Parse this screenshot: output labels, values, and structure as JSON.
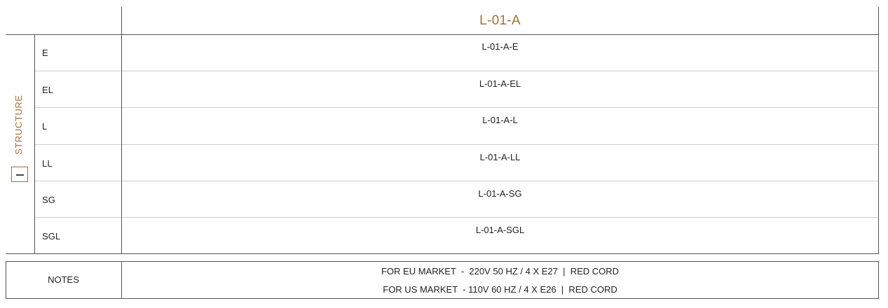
{
  "header": {
    "title": "L-01-A"
  },
  "structure": {
    "label": "STRUCTURE",
    "rows": [
      {
        "label": "E",
        "code": "L-01-A-E"
      },
      {
        "label": "EL",
        "code": "L-01-A-EL"
      },
      {
        "label": "L",
        "code": "L-01-A-L"
      },
      {
        "label": "LL",
        "code": "L-01-A-LL"
      },
      {
        "label": "SG",
        "code": "L-01-A-SG"
      },
      {
        "label": "SGL",
        "code": "L-01-A-SGL"
      }
    ]
  },
  "notes": {
    "label": "NOTES",
    "lines": [
      "FOR EU MARKET  -  220V 50 HZ / 4 X E27  |  RED CORD",
      "FOR US MARKET  - 110V 60 HZ / 4 X E26  |  RED CORD"
    ]
  },
  "colors": {
    "accent": "#a0723a",
    "line": "#555555",
    "row_divider": "#cfcfcf"
  }
}
